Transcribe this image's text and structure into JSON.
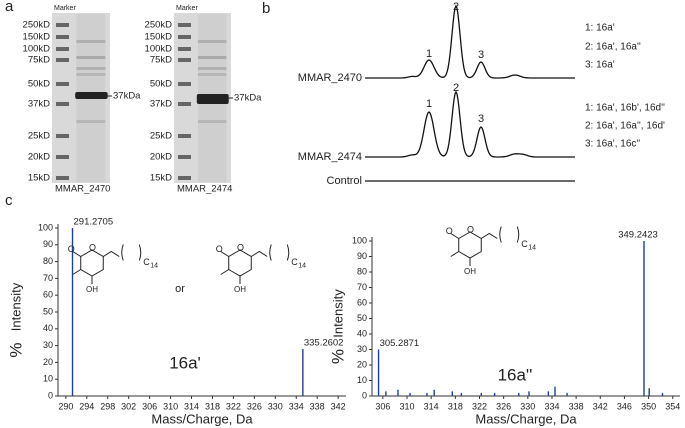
{
  "panel_labels": [
    "a",
    "b",
    "c"
  ],
  "gels": [
    {
      "header": "Marker",
      "marker_labels": [
        "250kD",
        "150kD",
        "100kD",
        "75kD",
        "50kD",
        "37kD",
        "25kD",
        "20kD",
        "15kD"
      ],
      "band_label": "37kDa",
      "lane_label": "MMAR_2470"
    },
    {
      "header": "Marker",
      "marker_labels": [
        "250kD",
        "150kD",
        "100kD",
        "75kD",
        "50kD",
        "37kD",
        "25kD",
        "20kD",
        "15kD"
      ],
      "band_label": "37kDa",
      "lane_label": "MMAR_2474"
    }
  ],
  "chromatograms": [
    {
      "name": "MMAR_2470",
      "peak_labels": [
        "1",
        "2",
        "3"
      ],
      "annotations": [
        "1: 16a'",
        "2: 16a', 16a''",
        "3: 16a'"
      ]
    },
    {
      "name": "MMAR_2474",
      "peak_labels": [
        "1",
        "2",
        "3"
      ],
      "annotations": [
        "1: 16a', 16b',  16d''",
        "2: 16a', 16a'', 16d'",
        "3: 16a', 16c''"
      ]
    },
    {
      "name": "Control"
    }
  ],
  "chart_data": [
    {
      "type": "bar",
      "compound": "16a'",
      "x_label": "Mass/Charge, Da",
      "y_label_prefix": "%",
      "y_label": "Intensity",
      "peaks": {
        "x": [
          291.2705,
          335.2602
        ],
        "values": [
          100,
          28
        ]
      },
      "minor_peaks": {
        "x": [],
        "values": []
      },
      "xlim": [
        288.5,
        343.5
      ],
      "xticks": [
        290,
        294,
        298,
        302,
        306,
        310,
        314,
        318,
        322,
        326,
        330,
        334,
        338,
        342
      ],
      "ylim": [
        0,
        100
      ],
      "yticks": [
        0,
        10,
        20,
        30,
        40,
        50,
        60,
        70,
        80,
        90,
        100
      ],
      "color": "#1f3f9a",
      "structures": [
        {
          "carbonyl": "O",
          "ring": "O",
          "hydroxyl": "OH",
          "chain": "C",
          "chain_count": "14"
        },
        {
          "carbonyl": "O",
          "ring": "O",
          "hydroxyl": "OH",
          "chain": "C",
          "chain_count": "14"
        }
      ],
      "connector": "or"
    },
    {
      "type": "bar",
      "compound": "16a''",
      "x_label": "Mass/Charge, Da",
      "y_label_prefix": "%",
      "y_label": "Intensity",
      "peaks": {
        "x": [
          305.2871,
          349.2423
        ],
        "values": [
          30,
          100
        ]
      },
      "minor_peaks": {
        "x": [
          306.5,
          308.5,
          310.5,
          313.3,
          314.5,
          317.5,
          319,
          322.3,
          324.5,
          328.5,
          330.2,
          333.4,
          334.5,
          336.5,
          350.1,
          352.3
        ],
        "values": [
          3,
          4,
          2,
          2,
          4,
          3,
          2,
          2,
          2,
          2,
          3,
          3,
          6,
          2,
          5,
          2
        ]
      },
      "xlim": [
        304.2,
        355.2
      ],
      "xticks": [
        306,
        310,
        314,
        318,
        322,
        326,
        330,
        334,
        338,
        342,
        346,
        350,
        354
      ],
      "ylim": [
        0,
        100
      ],
      "yticks": [
        0,
        10,
        20,
        30,
        40,
        50,
        60,
        70,
        80,
        90,
        100
      ],
      "color": "#1f3f9a",
      "structures": [
        {
          "carbonyl": "O",
          "ring": "O",
          "hydroxyl": "OH",
          "chain": "C",
          "chain_count": "14"
        }
      ]
    }
  ]
}
